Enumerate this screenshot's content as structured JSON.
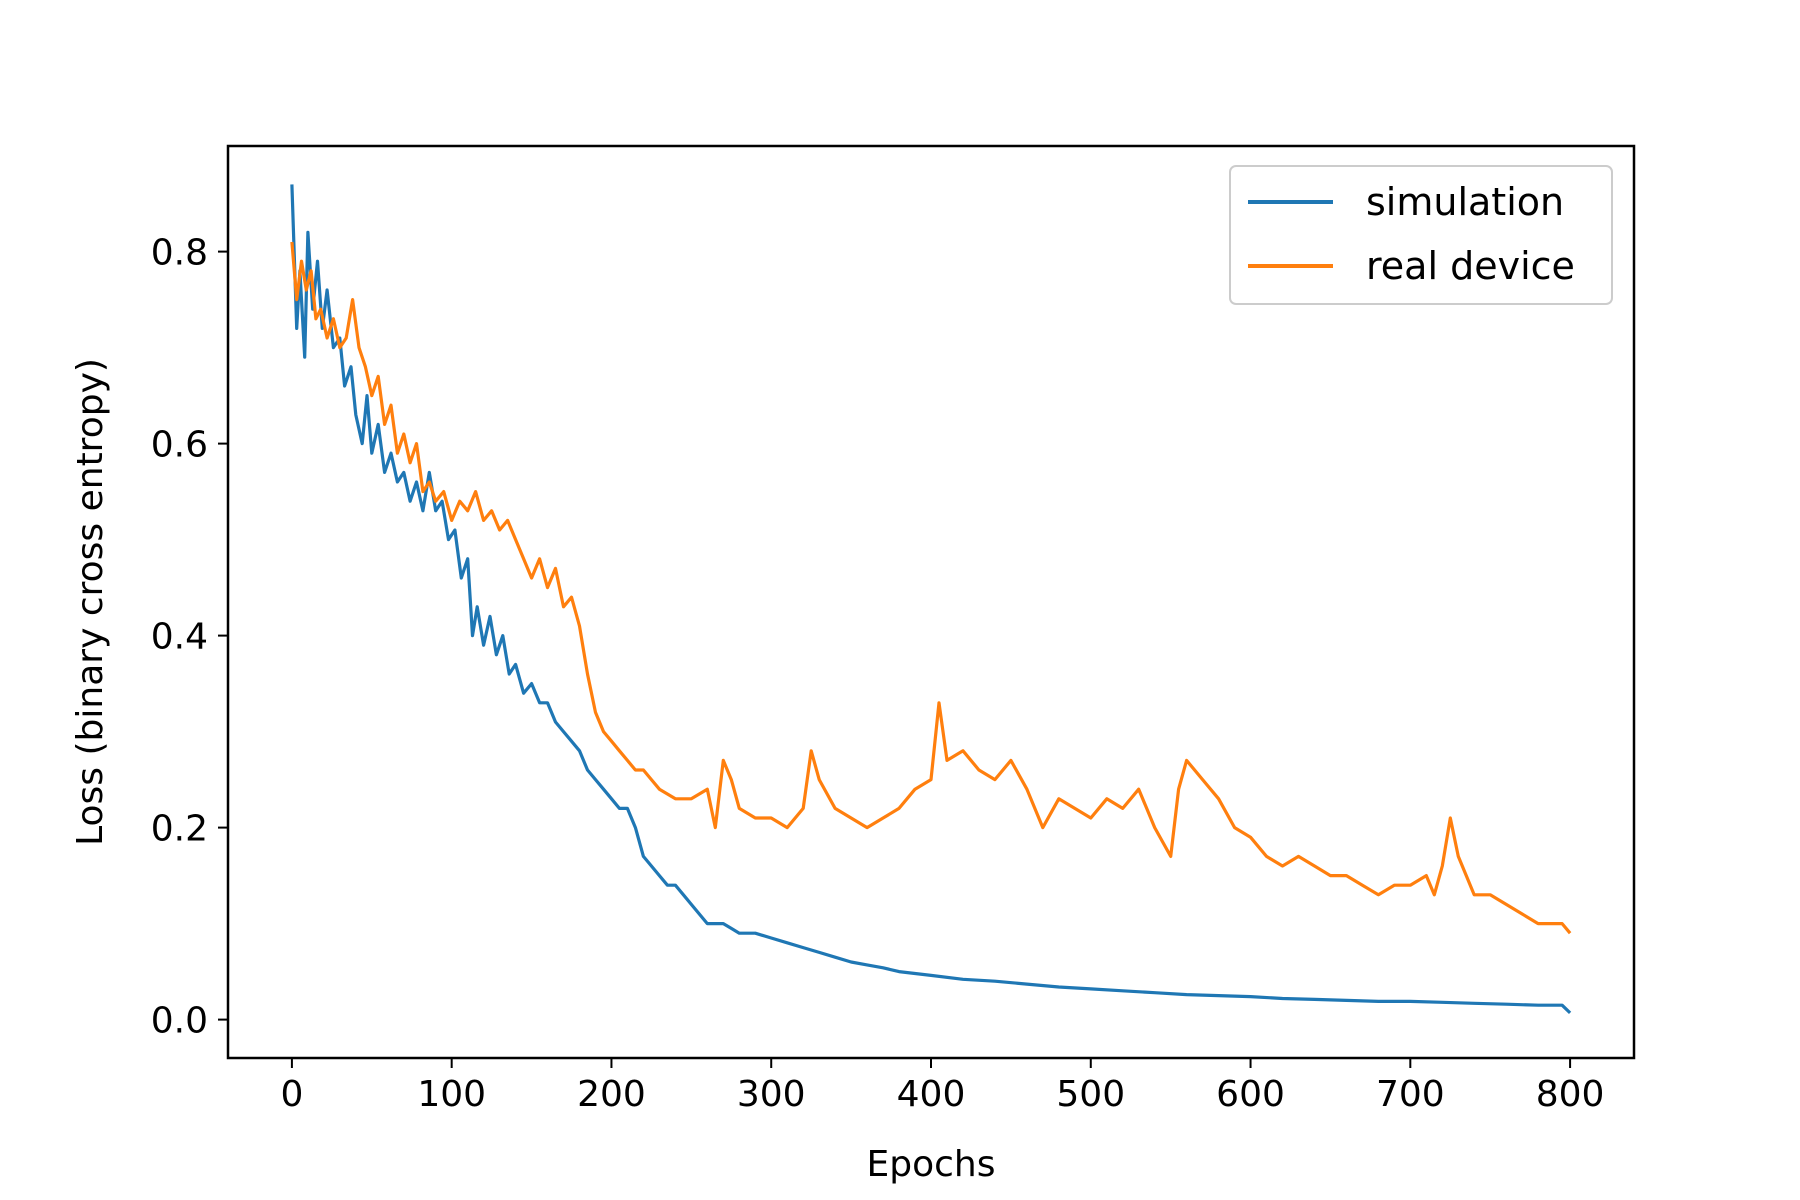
{
  "chart_data": {
    "type": "line",
    "title": "",
    "xlabel": "Epochs",
    "ylabel": "Loss (binary cross entropy)",
    "xlim": [
      -40,
      840
    ],
    "ylim": [
      -0.04,
      0.91
    ],
    "x_ticks": [
      0,
      100,
      200,
      300,
      400,
      500,
      600,
      700,
      800
    ],
    "x_tick_labels": [
      "0",
      "100",
      "200",
      "300",
      "400",
      "500",
      "600",
      "700",
      "800"
    ],
    "y_ticks": [
      0.0,
      0.2,
      0.4,
      0.6,
      0.8
    ],
    "y_tick_labels": [
      "0.0",
      "0.2",
      "0.4",
      "0.6",
      "0.8"
    ],
    "grid": false,
    "legend_position": "top-right",
    "series": [
      {
        "name": "simulation",
        "color": "#1f77b4",
        "points": [
          [
            0,
            0.87
          ],
          [
            3,
            0.72
          ],
          [
            5,
            0.78
          ],
          [
            8,
            0.69
          ],
          [
            10,
            0.82
          ],
          [
            13,
            0.74
          ],
          [
            16,
            0.79
          ],
          [
            19,
            0.72
          ],
          [
            22,
            0.76
          ],
          [
            26,
            0.7
          ],
          [
            30,
            0.71
          ],
          [
            33,
            0.66
          ],
          [
            37,
            0.68
          ],
          [
            40,
            0.63
          ],
          [
            44,
            0.6
          ],
          [
            47,
            0.65
          ],
          [
            50,
            0.59
          ],
          [
            54,
            0.62
          ],
          [
            58,
            0.57
          ],
          [
            62,
            0.59
          ],
          [
            66,
            0.56
          ],
          [
            70,
            0.57
          ],
          [
            74,
            0.54
          ],
          [
            78,
            0.56
          ],
          [
            82,
            0.53
          ],
          [
            86,
            0.57
          ],
          [
            90,
            0.53
          ],
          [
            94,
            0.54
          ],
          [
            98,
            0.5
          ],
          [
            102,
            0.51
          ],
          [
            106,
            0.46
          ],
          [
            110,
            0.48
          ],
          [
            113,
            0.4
          ],
          [
            116,
            0.43
          ],
          [
            120,
            0.39
          ],
          [
            124,
            0.42
          ],
          [
            128,
            0.38
          ],
          [
            132,
            0.4
          ],
          [
            136,
            0.36
          ],
          [
            140,
            0.37
          ],
          [
            145,
            0.34
          ],
          [
            150,
            0.35
          ],
          [
            155,
            0.33
          ],
          [
            160,
            0.33
          ],
          [
            165,
            0.31
          ],
          [
            170,
            0.3
          ],
          [
            175,
            0.29
          ],
          [
            180,
            0.28
          ],
          [
            185,
            0.26
          ],
          [
            190,
            0.25
          ],
          [
            195,
            0.24
          ],
          [
            200,
            0.23
          ],
          [
            205,
            0.22
          ],
          [
            210,
            0.22
          ],
          [
            215,
            0.2
          ],
          [
            220,
            0.17
          ],
          [
            225,
            0.16
          ],
          [
            230,
            0.15
          ],
          [
            235,
            0.14
          ],
          [
            240,
            0.14
          ],
          [
            245,
            0.13
          ],
          [
            250,
            0.12
          ],
          [
            255,
            0.11
          ],
          [
            260,
            0.1
          ],
          [
            265,
            0.1
          ],
          [
            270,
            0.1
          ],
          [
            275,
            0.095
          ],
          [
            280,
            0.09
          ],
          [
            290,
            0.09
          ],
          [
            300,
            0.085
          ],
          [
            310,
            0.08
          ],
          [
            320,
            0.075
          ],
          [
            330,
            0.07
          ],
          [
            340,
            0.065
          ],
          [
            350,
            0.06
          ],
          [
            360,
            0.057
          ],
          [
            370,
            0.054
          ],
          [
            380,
            0.05
          ],
          [
            390,
            0.048
          ],
          [
            400,
            0.046
          ],
          [
            420,
            0.042
          ],
          [
            440,
            0.04
          ],
          [
            460,
            0.037
          ],
          [
            480,
            0.034
          ],
          [
            500,
            0.032
          ],
          [
            520,
            0.03
          ],
          [
            540,
            0.028
          ],
          [
            560,
            0.026
          ],
          [
            580,
            0.025
          ],
          [
            600,
            0.024
          ],
          [
            620,
            0.022
          ],
          [
            640,
            0.021
          ],
          [
            660,
            0.02
          ],
          [
            680,
            0.019
          ],
          [
            700,
            0.019
          ],
          [
            720,
            0.018
          ],
          [
            740,
            0.017
          ],
          [
            760,
            0.016
          ],
          [
            780,
            0.015
          ],
          [
            795,
            0.015
          ],
          [
            800,
            0.007
          ]
        ]
      },
      {
        "name": "real device",
        "color": "#ff7f0e",
        "points": [
          [
            0,
            0.81
          ],
          [
            3,
            0.75
          ],
          [
            6,
            0.79
          ],
          [
            9,
            0.76
          ],
          [
            12,
            0.78
          ],
          [
            15,
            0.73
          ],
          [
            18,
            0.74
          ],
          [
            22,
            0.71
          ],
          [
            26,
            0.73
          ],
          [
            30,
            0.7
          ],
          [
            34,
            0.71
          ],
          [
            38,
            0.75
          ],
          [
            42,
            0.7
          ],
          [
            46,
            0.68
          ],
          [
            50,
            0.65
          ],
          [
            54,
            0.67
          ],
          [
            58,
            0.62
          ],
          [
            62,
            0.64
          ],
          [
            66,
            0.59
          ],
          [
            70,
            0.61
          ],
          [
            74,
            0.58
          ],
          [
            78,
            0.6
          ],
          [
            82,
            0.55
          ],
          [
            86,
            0.56
          ],
          [
            90,
            0.54
          ],
          [
            95,
            0.55
          ],
          [
            100,
            0.52
          ],
          [
            105,
            0.54
          ],
          [
            110,
            0.53
          ],
          [
            115,
            0.55
          ],
          [
            120,
            0.52
          ],
          [
            125,
            0.53
          ],
          [
            130,
            0.51
          ],
          [
            135,
            0.52
          ],
          [
            140,
            0.5
          ],
          [
            145,
            0.48
          ],
          [
            150,
            0.46
          ],
          [
            155,
            0.48
          ],
          [
            160,
            0.45
          ],
          [
            165,
            0.47
          ],
          [
            170,
            0.43
          ],
          [
            175,
            0.44
          ],
          [
            180,
            0.41
          ],
          [
            185,
            0.36
          ],
          [
            190,
            0.32
          ],
          [
            195,
            0.3
          ],
          [
            200,
            0.29
          ],
          [
            205,
            0.28
          ],
          [
            210,
            0.27
          ],
          [
            215,
            0.26
          ],
          [
            220,
            0.26
          ],
          [
            225,
            0.25
          ],
          [
            230,
            0.24
          ],
          [
            240,
            0.23
          ],
          [
            250,
            0.23
          ],
          [
            260,
            0.24
          ],
          [
            265,
            0.2
          ],
          [
            270,
            0.27
          ],
          [
            275,
            0.25
          ],
          [
            280,
            0.22
          ],
          [
            290,
            0.21
          ],
          [
            300,
            0.21
          ],
          [
            310,
            0.2
          ],
          [
            320,
            0.22
          ],
          [
            325,
            0.28
          ],
          [
            330,
            0.25
          ],
          [
            340,
            0.22
          ],
          [
            350,
            0.21
          ],
          [
            360,
            0.2
          ],
          [
            370,
            0.21
          ],
          [
            380,
            0.22
          ],
          [
            390,
            0.24
          ],
          [
            400,
            0.25
          ],
          [
            405,
            0.33
          ],
          [
            410,
            0.27
          ],
          [
            420,
            0.28
          ],
          [
            430,
            0.26
          ],
          [
            440,
            0.25
          ],
          [
            450,
            0.27
          ],
          [
            460,
            0.24
          ],
          [
            470,
            0.2
          ],
          [
            480,
            0.23
          ],
          [
            490,
            0.22
          ],
          [
            500,
            0.21
          ],
          [
            510,
            0.23
          ],
          [
            520,
            0.22
          ],
          [
            530,
            0.24
          ],
          [
            540,
            0.2
          ],
          [
            550,
            0.17
          ],
          [
            555,
            0.24
          ],
          [
            560,
            0.27
          ],
          [
            570,
            0.25
          ],
          [
            580,
            0.23
          ],
          [
            590,
            0.2
          ],
          [
            600,
            0.19
          ],
          [
            610,
            0.17
          ],
          [
            620,
            0.16
          ],
          [
            630,
            0.17
          ],
          [
            640,
            0.16
          ],
          [
            650,
            0.15
          ],
          [
            660,
            0.15
          ],
          [
            670,
            0.14
          ],
          [
            680,
            0.13
          ],
          [
            690,
            0.14
          ],
          [
            700,
            0.14
          ],
          [
            710,
            0.15
          ],
          [
            715,
            0.13
          ],
          [
            720,
            0.16
          ],
          [
            725,
            0.21
          ],
          [
            730,
            0.17
          ],
          [
            740,
            0.13
          ],
          [
            750,
            0.13
          ],
          [
            760,
            0.12
          ],
          [
            770,
            0.11
          ],
          [
            780,
            0.1
          ],
          [
            790,
            0.1
          ],
          [
            795,
            0.1
          ],
          [
            800,
            0.09
          ]
        ]
      }
    ]
  }
}
